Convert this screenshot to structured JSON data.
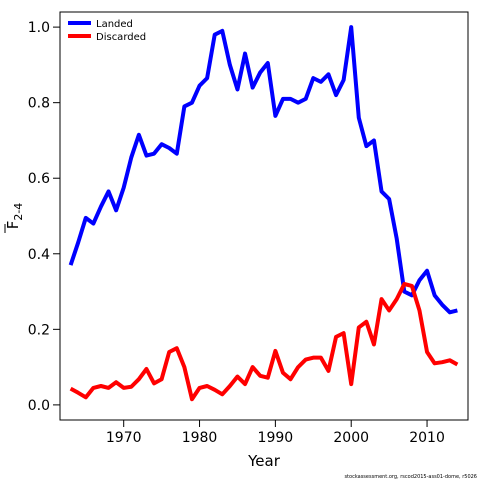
{
  "chart_data": {
    "type": "line",
    "title": "",
    "xlabel": "Year",
    "ylabel": "F̄2-4",
    "ylabel_main": "F",
    "ylabel_sub": "2-4",
    "xlim": [
      1961.6,
      2015.4
    ],
    "ylim": [
      -0.04,
      1.04
    ],
    "x_ticks": [
      1970,
      1980,
      1990,
      2000,
      2010
    ],
    "y_ticks": [
      0.0,
      0.2,
      0.4,
      0.6,
      0.8,
      1.0
    ],
    "x_tick_labels": [
      "1970",
      "1980",
      "1990",
      "2000",
      "2010"
    ],
    "y_tick_labels": [
      "0.0",
      "0.2",
      "0.4",
      "0.6",
      "0.8",
      "1.0"
    ],
    "grid": false,
    "legend_position": "top-left",
    "x": [
      1963,
      1964,
      1965,
      1966,
      1967,
      1968,
      1969,
      1970,
      1971,
      1972,
      1973,
      1974,
      1975,
      1976,
      1977,
      1978,
      1979,
      1980,
      1981,
      1982,
      1983,
      1984,
      1985,
      1986,
      1987,
      1988,
      1989,
      1990,
      1991,
      1992,
      1993,
      1994,
      1995,
      1996,
      1997,
      1998,
      1999,
      2000,
      2001,
      2002,
      2003,
      2004,
      2005,
      2006,
      2007,
      2008,
      2009,
      2010,
      2011,
      2012,
      2013,
      2014
    ],
    "series": [
      {
        "name": "Landed",
        "color": "#0000ff",
        "values": [
          0.37,
          0.43,
          0.495,
          0.48,
          0.525,
          0.565,
          0.515,
          0.575,
          0.655,
          0.715,
          0.66,
          0.665,
          0.69,
          0.68,
          0.665,
          0.79,
          0.8,
          0.845,
          0.865,
          0.98,
          0.99,
          0.9,
          0.835,
          0.93,
          0.84,
          0.88,
          0.905,
          0.765,
          0.81,
          0.81,
          0.8,
          0.81,
          0.865,
          0.855,
          0.875,
          0.82,
          0.86,
          1.0,
          0.76,
          0.685,
          0.7,
          0.565,
          0.545,
          0.44,
          0.3,
          0.29,
          0.33,
          0.355,
          0.29,
          0.265,
          0.245,
          0.25
        ]
      },
      {
        "name": "Discarded",
        "color": "#ff0000",
        "values": [
          0.043,
          0.032,
          0.02,
          0.045,
          0.05,
          0.045,
          0.06,
          0.045,
          0.048,
          0.068,
          0.095,
          0.057,
          0.068,
          0.14,
          0.15,
          0.1,
          0.015,
          0.045,
          0.05,
          0.04,
          0.028,
          0.05,
          0.075,
          0.055,
          0.1,
          0.077,
          0.072,
          0.143,
          0.085,
          0.068,
          0.1,
          0.12,
          0.125,
          0.125,
          0.09,
          0.18,
          0.19,
          0.055,
          0.205,
          0.22,
          0.16,
          0.28,
          0.25,
          0.28,
          0.32,
          0.315,
          0.25,
          0.14,
          0.11,
          0.113,
          0.118,
          0.107
        ]
      }
    ]
  },
  "footer": {
    "note": "stockassessment.org, rscod2015-ass01-dome, r5026"
  }
}
